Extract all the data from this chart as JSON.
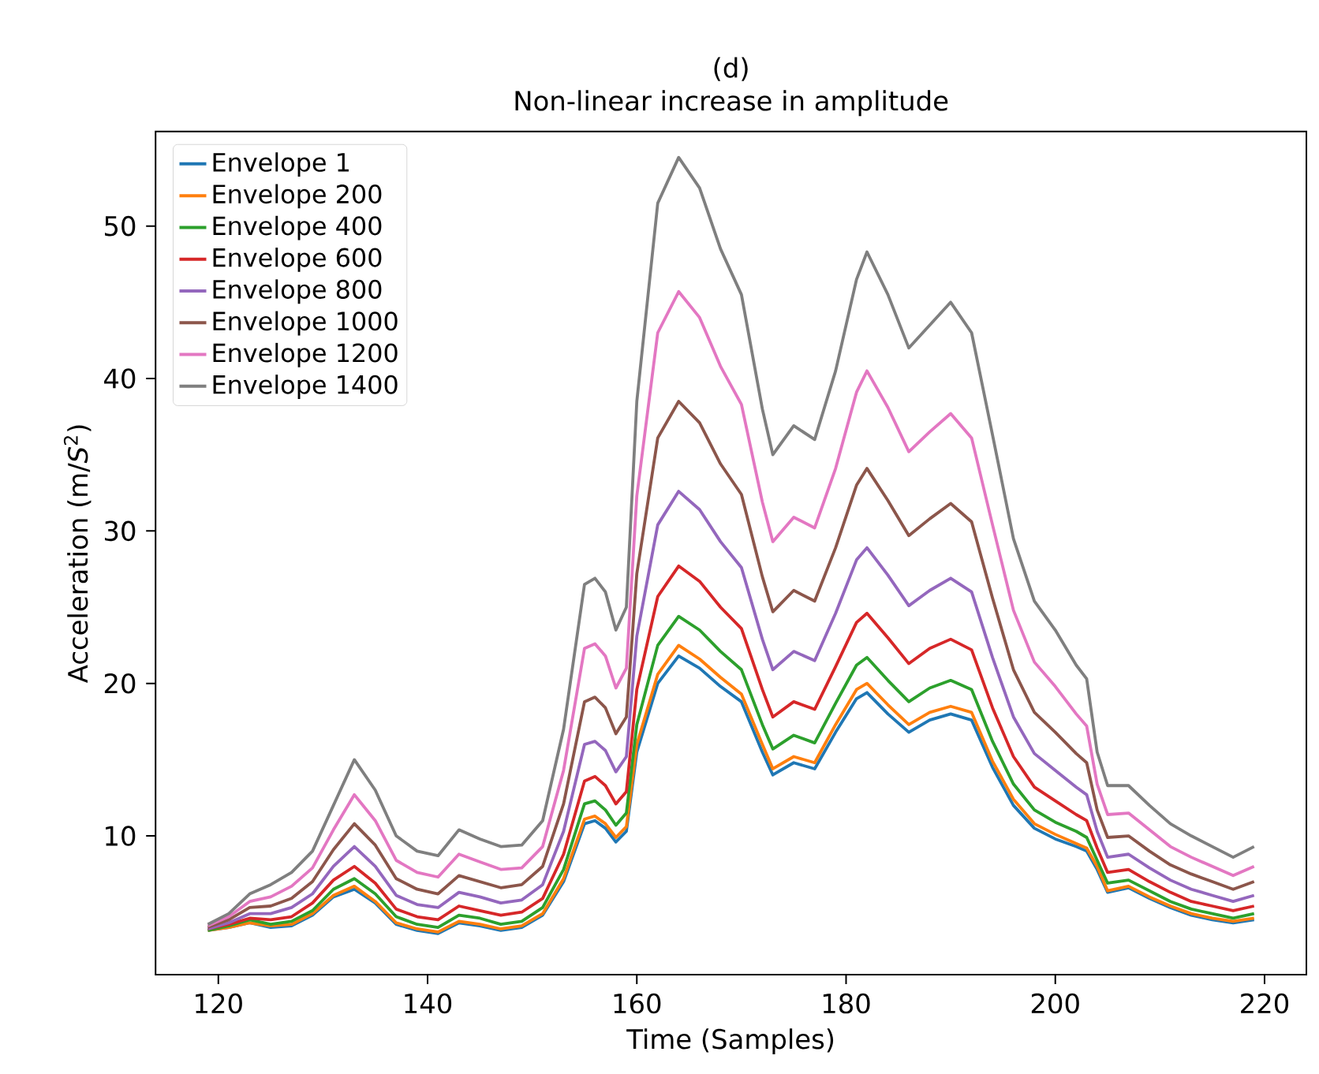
{
  "chart_data": {
    "type": "line",
    "title": "(d)",
    "subtitle": "Non-linear increase in amplitude",
    "xlabel": "Time (Samples)",
    "ylabel": "Acceleration (m/*S*$^{2}$)",
    "x": [
      119,
      121,
      123,
      125,
      127,
      129,
      131,
      133,
      135,
      137,
      139,
      141,
      143,
      145,
      147,
      149,
      151,
      153,
      155,
      156,
      157,
      158,
      159,
      160,
      162,
      164,
      166,
      168,
      170,
      172,
      173,
      175,
      177,
      179,
      181,
      182,
      184,
      186,
      188,
      190,
      192,
      194,
      196,
      198,
      200,
      202,
      203,
      204,
      205,
      207,
      209,
      211,
      213,
      215,
      217,
      219
    ],
    "xlim": [
      114,
      224
    ],
    "ylim": [
      0.9,
      56.2
    ],
    "xticks": [
      120,
      140,
      160,
      180,
      200,
      220
    ],
    "yticks": [
      10,
      20,
      30,
      40,
      50
    ],
    "legend": "top left",
    "grid": false,
    "marker": "none",
    "line_style": "solid",
    "series": [
      {
        "name": "Envelope 1",
        "color": "#1f77b4",
        "values": [
          3.8,
          4.0,
          4.3,
          4.0,
          4.1,
          4.8,
          6.0,
          6.5,
          5.6,
          4.2,
          3.8,
          3.6,
          4.3,
          4.1,
          3.8,
          4.0,
          4.8,
          7.0,
          10.8,
          11.0,
          10.5,
          9.6,
          10.3,
          15.5,
          20.0,
          21.8,
          21.0,
          19.8,
          18.8,
          15.5,
          14.0,
          14.8,
          14.4,
          16.8,
          19.0,
          19.4,
          18.0,
          16.8,
          17.6,
          18.0,
          17.6,
          14.5,
          12.0,
          10.5,
          9.8,
          9.3,
          9.0,
          7.8,
          6.3,
          6.6,
          5.9,
          5.3,
          4.8,
          4.5,
          4.3,
          4.5
        ]
      },
      {
        "name": "Envelope 200",
        "color": "#ff7f0e",
        "values": [
          3.8,
          4.0,
          4.3,
          4.1,
          4.2,
          4.9,
          6.1,
          6.7,
          5.7,
          4.3,
          3.9,
          3.7,
          4.4,
          4.2,
          3.9,
          4.1,
          4.9,
          7.2,
          11.1,
          11.3,
          10.8,
          9.9,
          10.6,
          16.0,
          20.6,
          22.5,
          21.6,
          20.4,
          19.3,
          16.0,
          14.4,
          15.2,
          14.8,
          17.3,
          19.6,
          20.0,
          18.6,
          17.3,
          18.1,
          18.5,
          18.1,
          14.9,
          12.4,
          10.8,
          10.1,
          9.5,
          9.2,
          8.0,
          6.4,
          6.7,
          6.0,
          5.4,
          4.9,
          4.6,
          4.4,
          4.6
        ]
      },
      {
        "name": "Envelope 400",
        "color": "#2ca02c",
        "values": [
          3.8,
          4.1,
          4.5,
          4.2,
          4.4,
          5.1,
          6.5,
          7.2,
          6.2,
          4.7,
          4.2,
          4.0,
          4.8,
          4.6,
          4.2,
          4.4,
          5.3,
          7.8,
          12.1,
          12.3,
          11.7,
          10.7,
          11.5,
          17.3,
          22.5,
          24.4,
          23.5,
          22.1,
          20.9,
          17.3,
          15.7,
          16.6,
          16.1,
          18.7,
          21.2,
          21.7,
          20.2,
          18.8,
          19.7,
          20.2,
          19.6,
          16.2,
          13.4,
          11.7,
          10.9,
          10.3,
          9.9,
          8.4,
          6.9,
          7.1,
          6.4,
          5.7,
          5.2,
          4.9,
          4.6,
          4.9
        ]
      },
      {
        "name": "Envelope 600",
        "color": "#d62728",
        "values": [
          3.9,
          4.2,
          4.6,
          4.5,
          4.7,
          5.6,
          7.1,
          8.0,
          6.9,
          5.2,
          4.7,
          4.5,
          5.4,
          5.1,
          4.8,
          5.0,
          5.9,
          8.8,
          13.6,
          13.9,
          13.3,
          12.1,
          12.9,
          19.6,
          25.7,
          27.7,
          26.7,
          25.0,
          23.6,
          19.6,
          17.8,
          18.8,
          18.3,
          21.1,
          24.0,
          24.6,
          23.0,
          21.3,
          22.3,
          22.9,
          22.2,
          18.4,
          15.2,
          13.2,
          12.3,
          11.4,
          11.0,
          9.2,
          7.6,
          7.8,
          7.0,
          6.3,
          5.7,
          5.4,
          5.1,
          5.4
        ]
      },
      {
        "name": "Envelope 800",
        "color": "#9467bd",
        "values": [
          3.9,
          4.3,
          4.9,
          4.9,
          5.3,
          6.2,
          8.0,
          9.3,
          8.0,
          6.1,
          5.5,
          5.3,
          6.3,
          6.0,
          5.6,
          5.8,
          6.8,
          10.3,
          16.0,
          16.2,
          15.6,
          14.2,
          15.2,
          23.1,
          30.4,
          32.6,
          31.4,
          29.3,
          27.6,
          22.9,
          20.9,
          22.1,
          21.5,
          24.6,
          28.1,
          28.9,
          27.1,
          25.1,
          26.1,
          26.9,
          26.0,
          21.7,
          17.8,
          15.4,
          14.3,
          13.2,
          12.7,
          10.3,
          8.6,
          8.8,
          7.9,
          7.1,
          6.5,
          6.1,
          5.7,
          6.1
        ]
      },
      {
        "name": "Envelope 1000",
        "color": "#8c564b",
        "values": [
          4.0,
          4.5,
          5.3,
          5.4,
          5.9,
          7.0,
          9.1,
          10.8,
          9.4,
          7.2,
          6.5,
          6.2,
          7.4,
          7.0,
          6.6,
          6.8,
          8.0,
          12.1,
          18.8,
          19.1,
          18.4,
          16.7,
          17.8,
          27.2,
          36.1,
          38.5,
          37.1,
          34.4,
          32.4,
          27.0,
          24.7,
          26.1,
          25.4,
          28.9,
          33.0,
          34.1,
          32.0,
          29.7,
          30.8,
          31.8,
          30.6,
          25.6,
          20.9,
          18.1,
          16.8,
          15.4,
          14.8,
          11.7,
          9.9,
          10.0,
          9.0,
          8.1,
          7.5,
          7.0,
          6.5,
          7.0
        ]
      },
      {
        "name": "Envelope 1200",
        "color": "#e377c2",
        "values": [
          4.1,
          4.7,
          5.7,
          6.0,
          6.7,
          7.9,
          10.4,
          12.7,
          11.0,
          8.4,
          7.6,
          7.3,
          8.8,
          8.3,
          7.8,
          7.9,
          9.3,
          14.3,
          22.3,
          22.6,
          21.8,
          19.7,
          21.0,
          32.3,
          43.0,
          45.7,
          44.0,
          40.8,
          38.3,
          31.9,
          29.3,
          30.9,
          30.2,
          34.1,
          39.1,
          40.5,
          38.1,
          35.2,
          36.5,
          37.7,
          36.1,
          30.4,
          24.8,
          21.4,
          19.8,
          18.0,
          17.2,
          13.4,
          11.4,
          11.5,
          10.4,
          9.3,
          8.6,
          8.0,
          7.4,
          8.0
        ]
      },
      {
        "name": "Envelope 1400",
        "color": "#7f7f7f",
        "values": [
          4.2,
          4.9,
          6.2,
          6.8,
          7.6,
          9.0,
          12.0,
          15.0,
          13.0,
          10.0,
          9.0,
          8.7,
          10.4,
          9.8,
          9.3,
          9.4,
          11.0,
          17.0,
          26.5,
          26.9,
          26.0,
          23.5,
          25.0,
          38.5,
          51.5,
          54.5,
          52.5,
          48.5,
          45.5,
          38.0,
          35.0,
          36.9,
          36.0,
          40.5,
          46.5,
          48.3,
          45.5,
          42.0,
          43.5,
          45.0,
          43.0,
          36.3,
          29.5,
          25.4,
          23.5,
          21.2,
          20.3,
          15.5,
          13.3,
          13.3,
          12.0,
          10.8,
          10.0,
          9.3,
          8.6,
          9.3
        ]
      }
    ]
  }
}
